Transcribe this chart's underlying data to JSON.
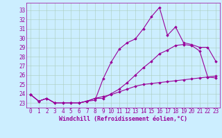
{
  "xlabel": "Windchill (Refroidissement éolien,°C)",
  "background_color": "#cceeff",
  "grid_color": "#aaccbb",
  "line_color": "#990099",
  "x_ticks": [
    0,
    1,
    2,
    3,
    4,
    5,
    6,
    7,
    8,
    9,
    10,
    11,
    12,
    13,
    14,
    15,
    16,
    17,
    18,
    19,
    20,
    21,
    22,
    23
  ],
  "y_ticks": [
    23,
    24,
    25,
    26,
    27,
    28,
    29,
    30,
    31,
    32,
    33
  ],
  "xlim": [
    -0.5,
    23.5
  ],
  "ylim": [
    22.5,
    33.8
  ],
  "curve1": [
    23.9,
    23.2,
    23.5,
    23.0,
    23.0,
    23.0,
    23.0,
    23.2,
    23.3,
    25.6,
    27.4,
    28.8,
    29.5,
    29.9,
    31.0,
    32.3,
    33.3,
    30.3,
    31.2,
    29.5,
    29.3,
    29.0,
    29.0,
    27.5
  ],
  "curve2": [
    23.9,
    23.2,
    23.5,
    23.0,
    23.0,
    23.0,
    23.0,
    23.2,
    23.5,
    23.5,
    24.0,
    24.5,
    25.2,
    26.0,
    26.8,
    27.5,
    28.3,
    28.7,
    29.2,
    29.3,
    29.2,
    28.6,
    25.8,
    25.7
  ],
  "curve3": [
    23.9,
    23.2,
    23.5,
    23.0,
    23.0,
    23.0,
    23.0,
    23.2,
    23.5,
    23.7,
    23.9,
    24.2,
    24.5,
    24.8,
    25.0,
    25.1,
    25.2,
    25.3,
    25.4,
    25.5,
    25.6,
    25.7,
    25.8,
    25.9
  ],
  "tick_fontsize": 5.5,
  "xlabel_fontsize": 6.0
}
